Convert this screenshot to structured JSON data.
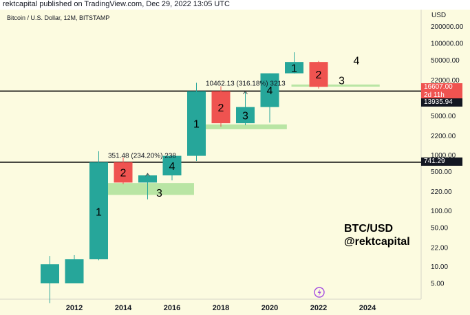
{
  "header": {
    "text": "rektcapital published on TradingView.com, Dec 29, 2022 13:05 UTC"
  },
  "chart": {
    "symbol": "Bitcoin / U.S. Dollar, 12M, BITSTAMP",
    "currency": "USD",
    "watermark_line1": "BTC/USD",
    "watermark_line2": "@rektcapital",
    "last_price": "16607.00",
    "countdown": "2d 11h",
    "level_upper": "13935.94",
    "level_lower": "741.29"
  },
  "colors": {
    "bull": "#26a69a",
    "bear": "#ef5350",
    "zone": "#b9e5a4",
    "background": "#fcfbe0"
  },
  "chart_data": {
    "type": "candlestick",
    "interval": "12M",
    "scale": "log",
    "x_ticks": [
      "2012",
      "2014",
      "2016",
      "2018",
      "2020",
      "2022",
      "2024"
    ],
    "y_ticks": [
      "200000.00",
      "100000.00",
      "50000.00",
      "22000.00",
      "10000.00",
      "5000.00",
      "2200.00",
      "1000.00",
      "500.00",
      "220.00",
      "100.00",
      "50.00",
      "22.00",
      "10.00",
      "5.00"
    ],
    "candles": [
      {
        "year": 2011,
        "open": 5,
        "high": 15.5,
        "low": 2.2,
        "close": 11
      },
      {
        "year": 2012,
        "open": 5,
        "high": 16,
        "low": 5,
        "close": 13.5
      },
      {
        "year": 2013,
        "open": 13.5,
        "high": 1163,
        "low": 13,
        "close": 741
      },
      {
        "year": 2014,
        "open": 741,
        "high": 900,
        "low": 300,
        "close": 320
      },
      {
        "year": 2015,
        "open": 320,
        "high": 465,
        "low": 160,
        "close": 430
      },
      {
        "year": 2016,
        "open": 430,
        "high": 980,
        "low": 350,
        "close": 963
      },
      {
        "year": 2017,
        "open": 963,
        "high": 19600,
        "low": 780,
        "close": 13860
      },
      {
        "year": 2018,
        "open": 13860,
        "high": 17000,
        "low": 3200,
        "close": 3700
      },
      {
        "year": 2019,
        "open": 3700,
        "high": 13800,
        "low": 3400,
        "close": 7200
      },
      {
        "year": 2020,
        "open": 7200,
        "high": 29000,
        "low": 3800,
        "close": 28990
      },
      {
        "year": 2021,
        "open": 28990,
        "high": 69000,
        "low": 28800,
        "close": 46200
      },
      {
        "year": 2022,
        "open": 46200,
        "high": 48200,
        "low": 15480,
        "close": 16607
      }
    ],
    "horizontal_levels": [
      13935.94,
      741.29
    ],
    "annotations": [
      {
        "text": "1",
        "near_year": 2013
      },
      {
        "text": "2",
        "near_year": 2014
      },
      {
        "text": "3",
        "near_year": 2015
      },
      {
        "text": "4",
        "near_year": 2016
      },
      {
        "text": "1",
        "near_year": 2017
      },
      {
        "text": "2",
        "near_year": 2018
      },
      {
        "text": "3",
        "near_year": 2019
      },
      {
        "text": "4",
        "near_year": 2020
      },
      {
        "text": "1",
        "near_year": 2021
      },
      {
        "text": "2",
        "near_year": 2022
      },
      {
        "text": "3",
        "near_year": 2023
      },
      {
        "text": "4",
        "near_year": 2024
      },
      {
        "text": "351.48 (234.20%) 238",
        "near_year": 2014
      },
      {
        "text": "10462.13 (316.18%) 3213",
        "near_year": 2018
      }
    ]
  }
}
